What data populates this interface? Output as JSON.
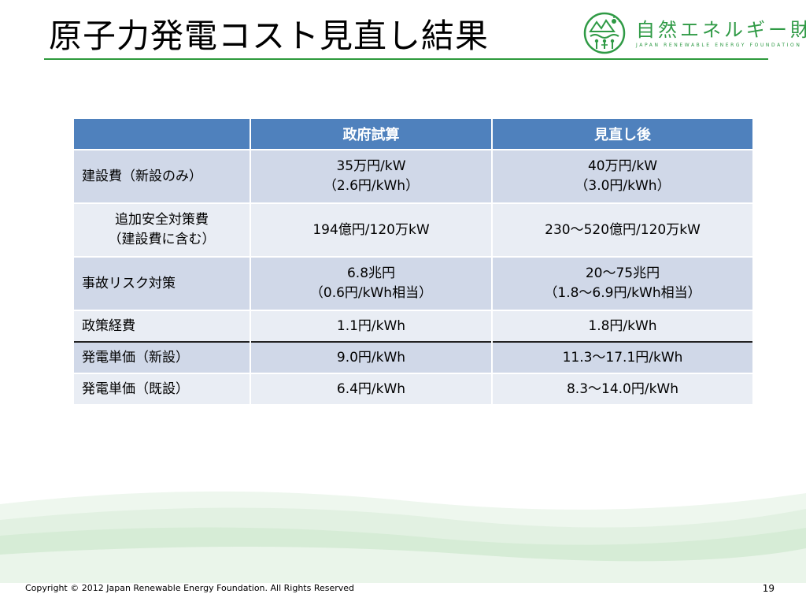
{
  "slide": {
    "title": "原子力発電コスト見直し結果",
    "page_number": "19",
    "copyright": "Copyright © 2012 Japan Renewable Energy Foundation. All Rights Reserved"
  },
  "logo": {
    "name": "自然エネルギー財団",
    "subtitle": "JAPAN RENEWABLE ENERGY FOUNDATION",
    "color": "#2f9a45"
  },
  "table": {
    "headers": [
      "",
      "政府試算",
      "見直し後"
    ],
    "rows": [
      {
        "label": "建設費（新設のみ）",
        "gov": [
          "35万円/kW",
          "（2.6円/kWh）"
        ],
        "rev": [
          "40万円/kW",
          "（3.0円/kWh）"
        ]
      },
      {
        "label": [
          "追加安全対策費",
          "（建設費に含む）"
        ],
        "gov": [
          "194億円/120万kW"
        ],
        "rev": [
          "230～520億円/120万kW"
        ]
      },
      {
        "label": "事故リスク対策",
        "gov": [
          "6.8兆円",
          "（0.6円/kWh相当）"
        ],
        "rev": [
          "20～75兆円",
          "（1.8～6.9円/kWh相当）"
        ]
      },
      {
        "label": "政策経費",
        "gov": [
          "1.1円/kWh"
        ],
        "rev": [
          "1.8円/kWh"
        ]
      },
      {
        "label": "発電単価（新設）",
        "gov": [
          "9.0円/kWh"
        ],
        "rev": [
          "11.3～17.1円/kWh"
        ]
      },
      {
        "label": "発電単価（既設）",
        "gov": [
          "6.4円/kWh"
        ],
        "rev": [
          "8.3～14.0円/kWh"
        ]
      }
    ],
    "colors": {
      "header": "#4f81bd",
      "row_odd": "#d0d8e8",
      "row_even": "#e9edf4"
    }
  }
}
